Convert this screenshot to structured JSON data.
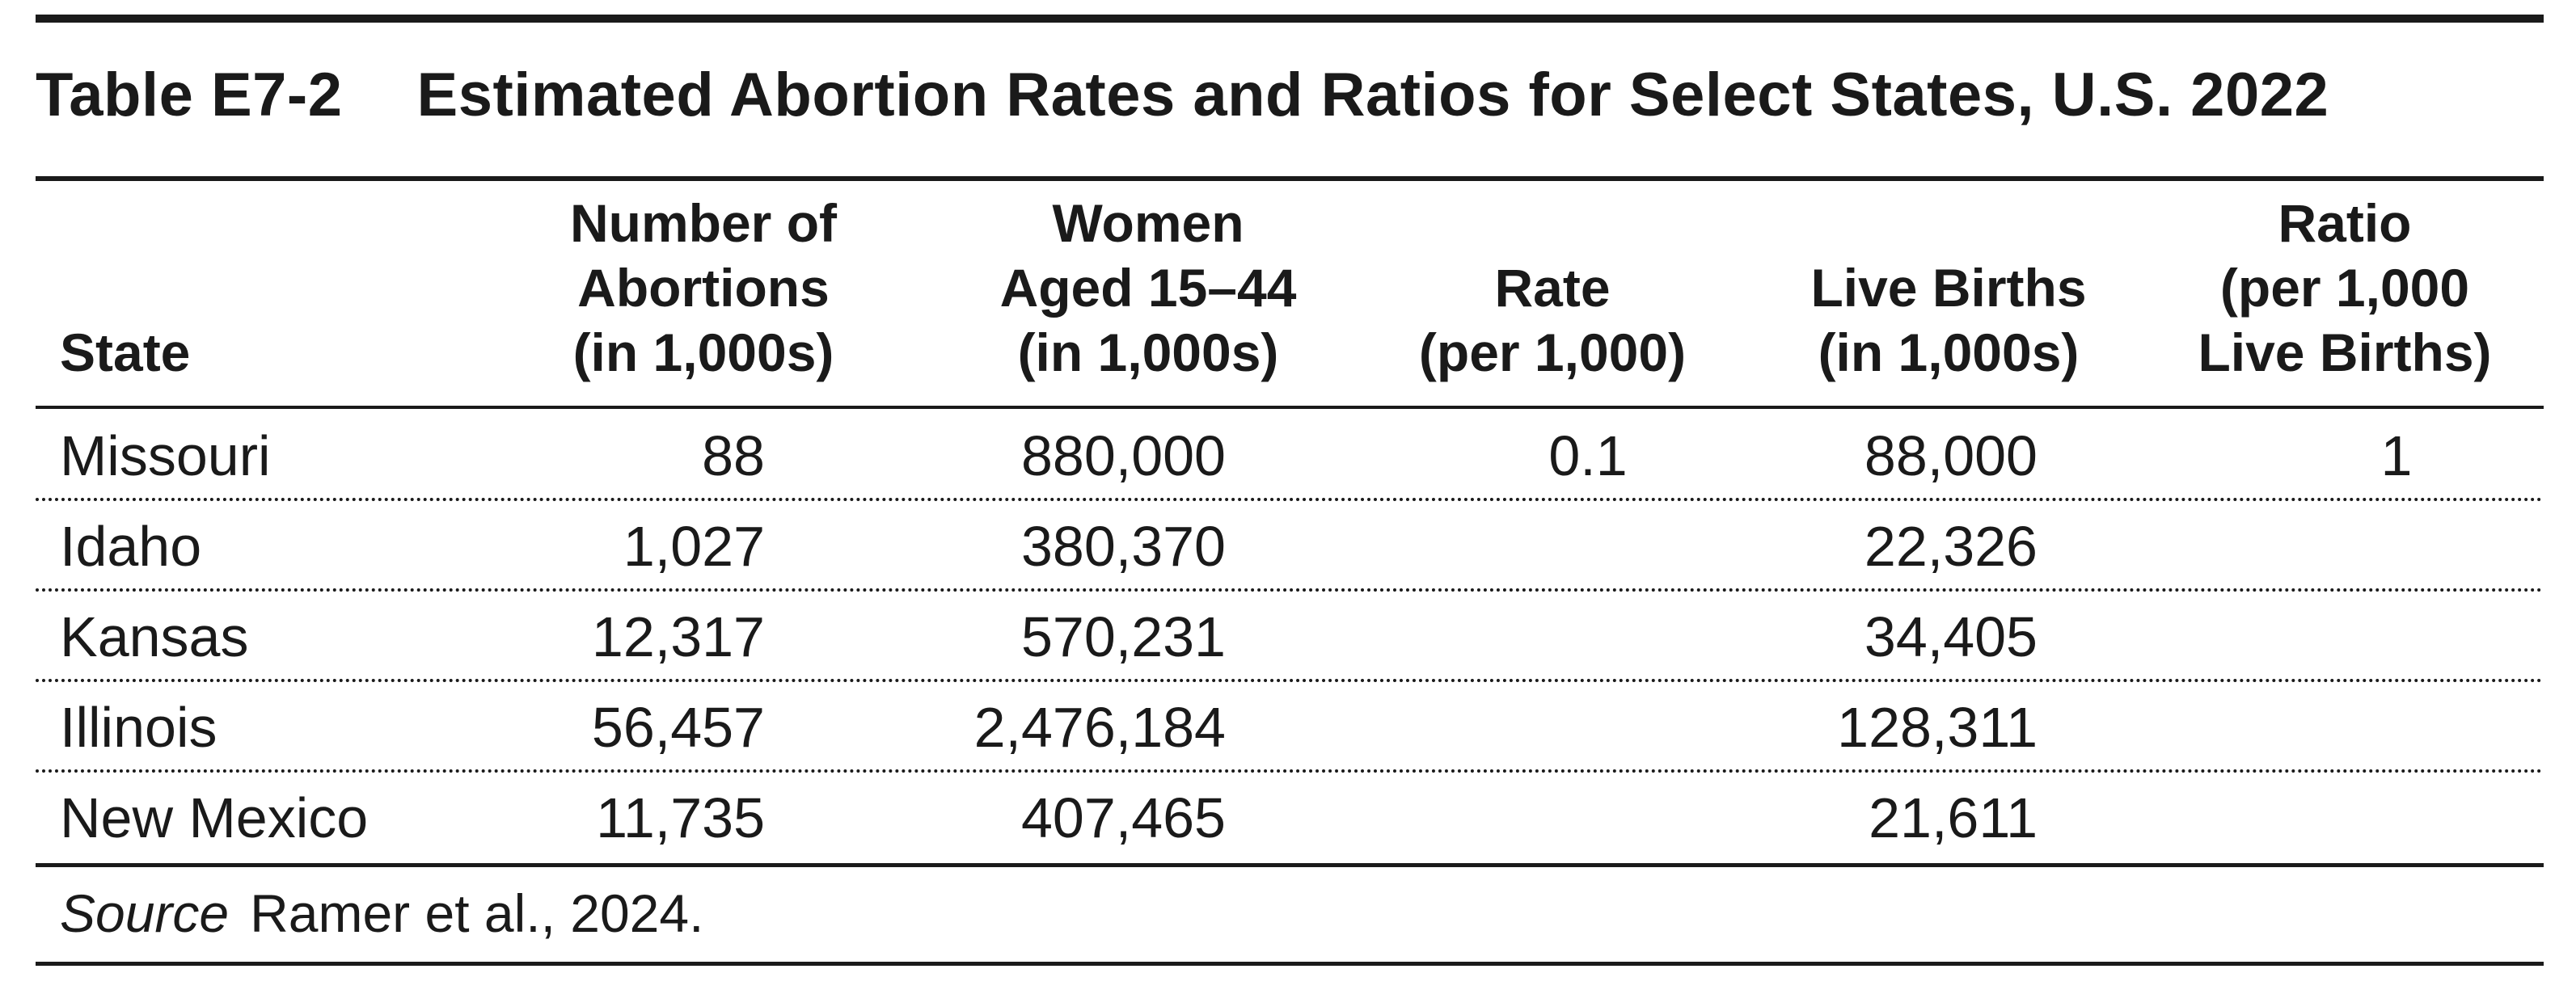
{
  "table": {
    "label": "Table E7-2",
    "title": "Estimated Abortion Rates and Ratios for Select States, U.S. 2022",
    "columns": [
      {
        "key": "state",
        "lines": [
          "State"
        ]
      },
      {
        "key": "abortions",
        "lines": [
          "Number of",
          "Abortions",
          "(in 1,000s)"
        ]
      },
      {
        "key": "women",
        "lines": [
          "Women",
          "Aged 15–44",
          "(in 1,000s)"
        ]
      },
      {
        "key": "rate",
        "lines": [
          "Rate",
          "(per 1,000)"
        ]
      },
      {
        "key": "births",
        "lines": [
          "Live Births",
          "(in 1,000s)"
        ]
      },
      {
        "key": "ratio",
        "lines": [
          "Ratio",
          "(per 1,000",
          "Live Births)"
        ]
      }
    ],
    "rows": [
      {
        "state": "Missouri",
        "abortions": "88",
        "women": "880,000",
        "rate": "0.1",
        "births": "88,000",
        "ratio": "1"
      },
      {
        "state": "Idaho",
        "abortions": "1,027",
        "women": "380,370",
        "rate": "",
        "births": "22,326",
        "ratio": ""
      },
      {
        "state": "Kansas",
        "abortions": "12,317",
        "women": "570,231",
        "rate": "",
        "births": "34,405",
        "ratio": ""
      },
      {
        "state": "Illinois",
        "abortions": "56,457",
        "women": "2,476,184",
        "rate": "",
        "births": "128,311",
        "ratio": ""
      },
      {
        "state": "New Mexico",
        "abortions": "11,735",
        "women": "407,465",
        "rate": "",
        "births": "21,611",
        "ratio": ""
      }
    ],
    "source_label": "Source",
    "source_text": "Ramer et al., 2024."
  }
}
